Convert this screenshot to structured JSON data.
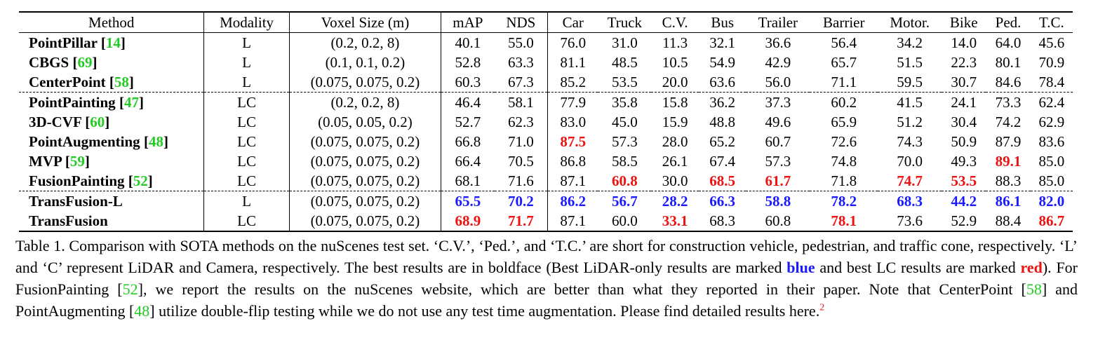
{
  "table": {
    "headers": [
      "Method",
      "Modality",
      "Voxel Size (m)",
      "mAP",
      "NDS",
      "Car",
      "Truck",
      "C.V.",
      "Bus",
      "Trailer",
      "Barrier",
      "Motor.",
      "Bike",
      "Ped.",
      "T.C."
    ],
    "rows": [
      {
        "name": "PointPillar",
        "ref": "14",
        "modality": "L",
        "voxel": "(0.2, 0.2, 8)",
        "values": [
          "40.1",
          "55.0",
          "76.0",
          "31.0",
          "11.3",
          "32.1",
          "36.6",
          "56.4",
          "34.2",
          "14.0",
          "64.0",
          "45.6"
        ],
        "highlight": [
          "",
          "",
          "",
          "",
          "",
          "",
          "",
          "",
          "",
          "",
          "",
          ""
        ]
      },
      {
        "name": "CBGS",
        "ref": "69",
        "modality": "L",
        "voxel": "(0.1, 0.1, 0.2)",
        "values": [
          "52.8",
          "63.3",
          "81.1",
          "48.5",
          "10.5",
          "54.9",
          "42.9",
          "65.7",
          "51.5",
          "22.3",
          "80.1",
          "70.9"
        ],
        "highlight": [
          "",
          "",
          "",
          "",
          "",
          "",
          "",
          "",
          "",
          "",
          "",
          ""
        ]
      },
      {
        "name": "CenterPoint",
        "ref": "58",
        "modality": "L",
        "voxel": "(0.075, 0.075, 0.2)",
        "values": [
          "60.3",
          "67.3",
          "85.2",
          "53.5",
          "20.0",
          "63.6",
          "56.0",
          "71.1",
          "59.5",
          "30.7",
          "84.6",
          "78.4"
        ],
        "highlight": [
          "",
          "",
          "",
          "",
          "",
          "",
          "",
          "",
          "",
          "",
          "",
          ""
        ]
      },
      {
        "name": "PointPainting",
        "ref": "47",
        "modality": "LC",
        "voxel": "(0.2, 0.2, 8)",
        "values": [
          "46.4",
          "58.1",
          "77.9",
          "35.8",
          "15.8",
          "36.2",
          "37.3",
          "60.2",
          "41.5",
          "24.1",
          "73.3",
          "62.4"
        ],
        "highlight": [
          "",
          "",
          "",
          "",
          "",
          "",
          "",
          "",
          "",
          "",
          "",
          ""
        ]
      },
      {
        "name": "3D-CVF",
        "ref": "60",
        "modality": "LC",
        "voxel": "(0.05, 0.05, 0.2)",
        "values": [
          "52.7",
          "62.3",
          "83.0",
          "45.0",
          "15.9",
          "48.8",
          "49.6",
          "65.9",
          "51.2",
          "30.4",
          "74.2",
          "62.9"
        ],
        "highlight": [
          "",
          "",
          "",
          "",
          "",
          "",
          "",
          "",
          "",
          "",
          "",
          ""
        ]
      },
      {
        "name": "PointAugmenting",
        "ref": "48",
        "modality": "LC",
        "voxel": "(0.075, 0.075, 0.2)",
        "values": [
          "66.8",
          "71.0",
          "87.5",
          "57.3",
          "28.0",
          "65.2",
          "60.7",
          "72.6",
          "74.3",
          "50.9",
          "87.9",
          "83.6"
        ],
        "highlight": [
          "",
          "",
          "r",
          "",
          "",
          "",
          "",
          "",
          "",
          "",
          "",
          ""
        ]
      },
      {
        "name": "MVP",
        "ref": "59",
        "modality": "LC",
        "voxel": "(0.075, 0.075, 0.2)",
        "values": [
          "66.4",
          "70.5",
          "86.8",
          "58.5",
          "26.1",
          "67.4",
          "57.3",
          "74.8",
          "70.0",
          "49.3",
          "89.1",
          "85.0"
        ],
        "highlight": [
          "",
          "",
          "",
          "",
          "",
          "",
          "",
          "",
          "",
          "",
          "r",
          ""
        ]
      },
      {
        "name": "FusionPainting",
        "ref": "52",
        "modality": "LC",
        "voxel": "(0.075, 0.075, 0.2)",
        "values": [
          "68.1",
          "71.6",
          "87.1",
          "60.8",
          "30.0",
          "68.5",
          "61.7",
          "71.8",
          "74.7",
          "53.5",
          "88.3",
          "85.0"
        ],
        "highlight": [
          "",
          "",
          "",
          "r",
          "",
          "r",
          "r",
          "",
          "r",
          "r",
          "",
          ""
        ]
      },
      {
        "name": "TransFusion-L",
        "ref": "",
        "modality": "L",
        "voxel": "(0.075, 0.075, 0.2)",
        "values": [
          "65.5",
          "70.2",
          "86.2",
          "56.7",
          "28.2",
          "66.3",
          "58.8",
          "78.2",
          "68.3",
          "44.2",
          "86.1",
          "82.0"
        ],
        "highlight": [
          "b",
          "b",
          "b",
          "b",
          "b",
          "b",
          "b",
          "b",
          "b",
          "b",
          "b",
          "b"
        ]
      },
      {
        "name": "TransFusion",
        "ref": "",
        "modality": "LC",
        "voxel": "(0.075, 0.075, 0.2)",
        "values": [
          "68.9",
          "71.7",
          "87.1",
          "60.0",
          "33.1",
          "68.3",
          "60.8",
          "78.1",
          "73.6",
          "52.9",
          "88.4",
          "86.7"
        ],
        "highlight": [
          "r",
          "r",
          "",
          "",
          "r",
          "",
          "",
          "r",
          "",
          "",
          "",
          "r"
        ]
      }
    ],
    "group_starts": [
      3,
      8
    ]
  },
  "caption": {
    "p1": "Table 1. Comparison with SOTA methods on the nuScenes test set. ‘C.V.’, ‘Ped.’, and ‘T.C.’ are short for construction vehicle, pedestrian, and traffic cone, respectively. ‘L’ and ‘C’ represent LiDAR and Camera, respectively. The best results are in boldface (Best LiDAR-only results are marked ",
    "blue_word": "blue",
    "p2": " and best LC results are marked ",
    "red_word": "red",
    "p3": "). For FusionPainting [",
    "ref1": "52",
    "p4": "], we report the results on the nuScenes website, which are better than what they reported in their paper. Note that CenterPoint [",
    "ref2": "58",
    "p5": "] and PointAugmenting [",
    "ref3": "48",
    "p6": "] utilize double-flip testing while we do not use any test time augmentation. Please find detailed results here.",
    "footnote": "2"
  },
  "colors": {
    "blue": "#1a1aff",
    "red": "#ee1111",
    "citation": "#22cc22"
  }
}
